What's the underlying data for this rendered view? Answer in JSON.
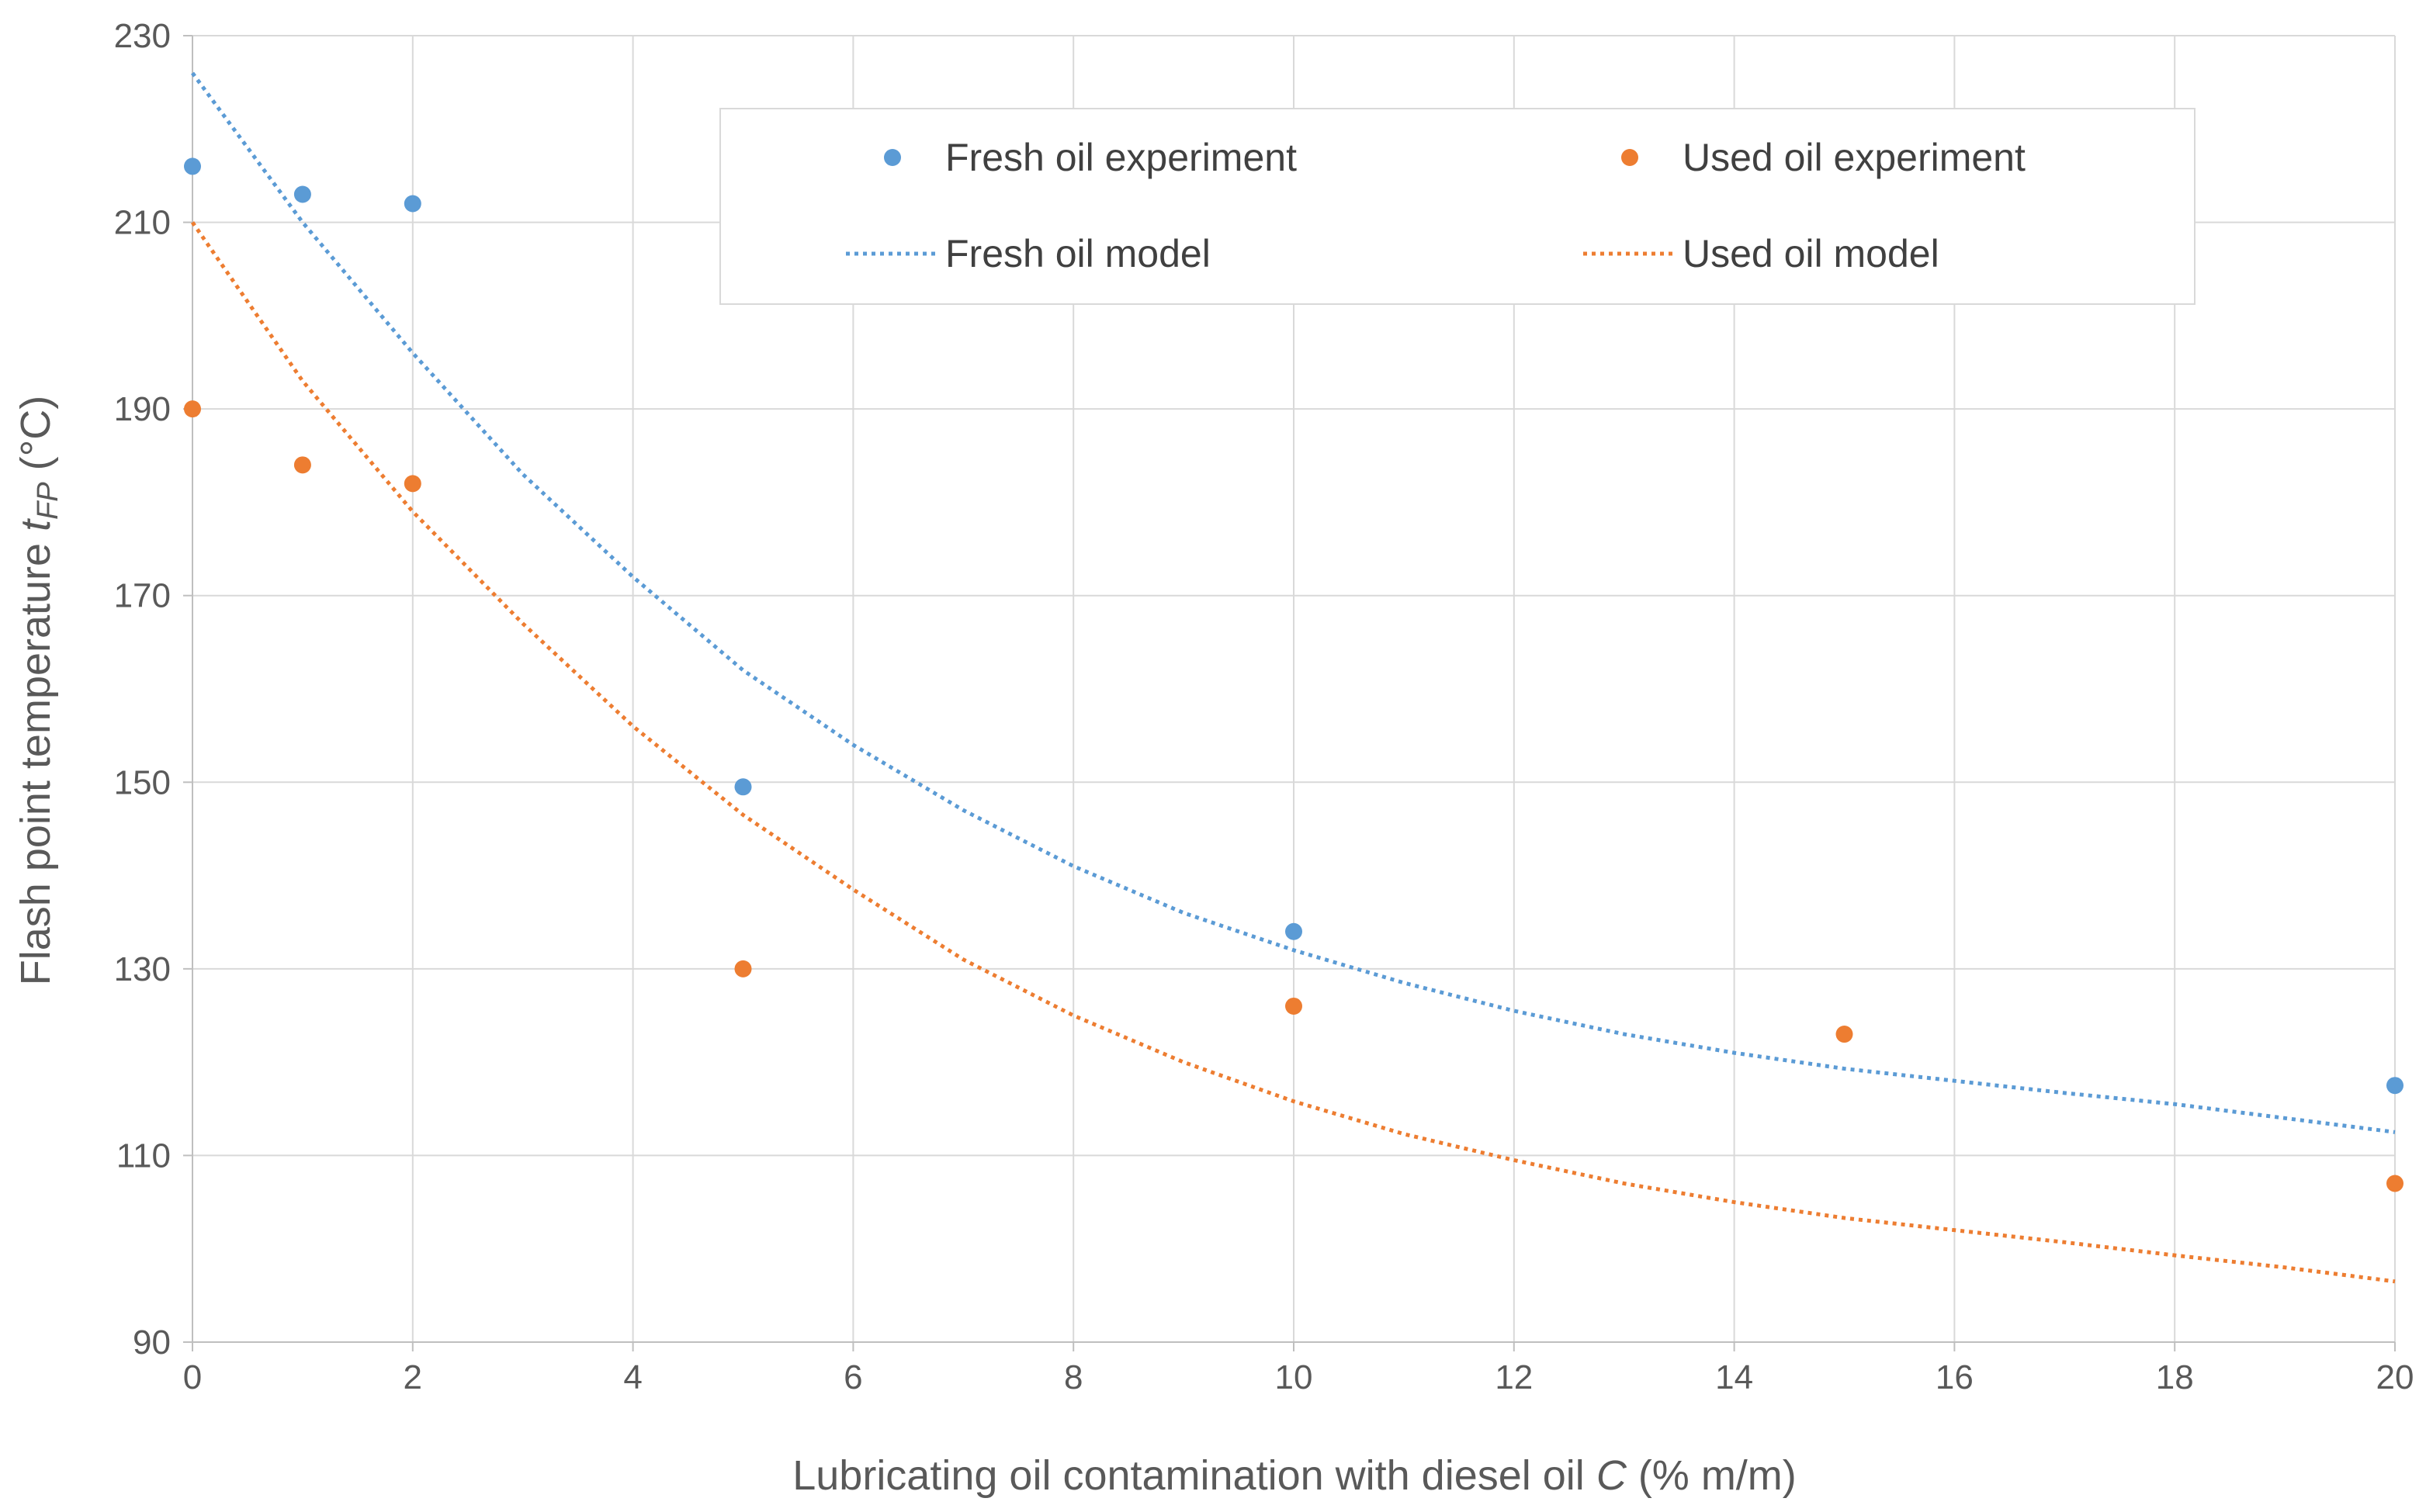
{
  "chart_data": {
    "type": "scatter",
    "title": "",
    "xlabel": {
      "main": "Lubricating oil contamination with diesel oil ",
      "var": "C",
      "unit": " (% m/m)"
    },
    "ylabel": {
      "main": "Flash point temperature ",
      "var": "t",
      "sub": "FP",
      "unit": " (°C)"
    },
    "xlim": [
      0,
      20
    ],
    "ylim": [
      90,
      230
    ],
    "xticks": [
      0,
      2,
      4,
      6,
      8,
      10,
      12,
      14,
      16,
      18,
      20
    ],
    "yticks": [
      90,
      110,
      130,
      150,
      170,
      190,
      210,
      230
    ],
    "grid": true,
    "legend_position": "top-right",
    "series": [
      {
        "name": "Fresh oil experiment",
        "kind": "points",
        "color": "#5B9BD5",
        "x": [
          0,
          1,
          2,
          5,
          10,
          20
        ],
        "y": [
          216,
          213,
          212,
          149.5,
          134,
          117.5
        ]
      },
      {
        "name": "Used oil experiment",
        "kind": "points",
        "color": "#ED7D31",
        "x": [
          0,
          1,
          2,
          5,
          10,
          15,
          20
        ],
        "y": [
          190,
          184,
          182,
          130,
          126,
          123,
          107
        ]
      },
      {
        "name": "Fresh oil model",
        "kind": "dotted-line",
        "color": "#5B9BD5",
        "x": [
          0,
          1,
          2,
          3,
          4,
          5,
          6,
          7,
          8,
          9,
          10,
          11,
          12,
          13,
          14,
          15,
          16,
          17,
          18,
          19,
          20
        ],
        "y": [
          226,
          210,
          196,
          183,
          172,
          162,
          154,
          147,
          141,
          136,
          132,
          128.5,
          125.5,
          123,
          121,
          119.3,
          118,
          116.7,
          115.5,
          114,
          112.5
        ]
      },
      {
        "name": "Used oil model",
        "kind": "dotted-line",
        "color": "#ED7D31",
        "x": [
          0,
          1,
          2,
          3,
          4,
          5,
          6,
          7,
          8,
          9,
          10,
          11,
          12,
          13,
          14,
          15,
          16,
          17,
          18,
          19,
          20
        ],
        "y": [
          210,
          193,
          179,
          167,
          156,
          146.5,
          138.5,
          131,
          125,
          120,
          115.8,
          112.3,
          109.5,
          107,
          105,
          103.3,
          102,
          100.7,
          99.3,
          98,
          96.5
        ]
      }
    ]
  }
}
